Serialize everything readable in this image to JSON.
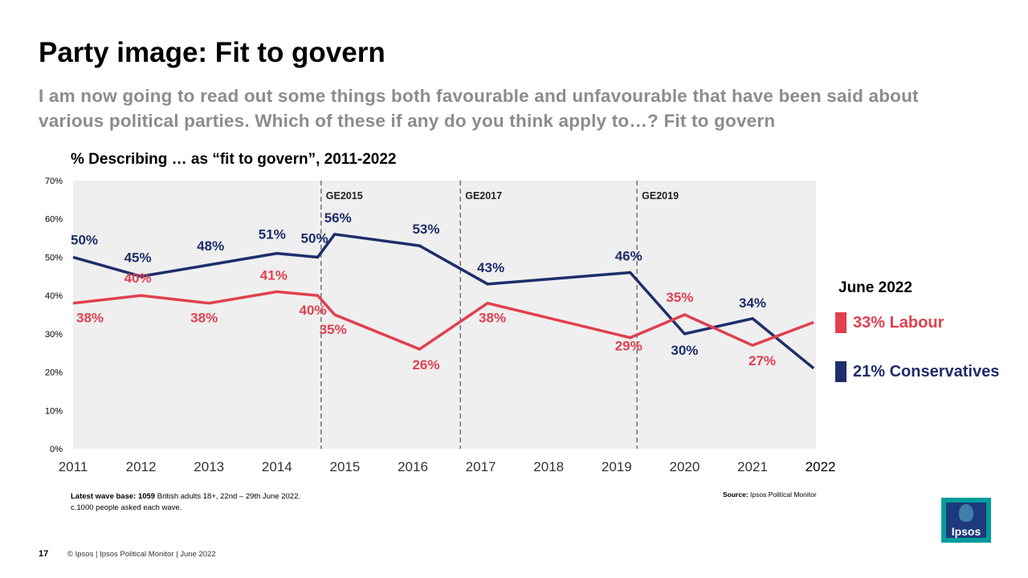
{
  "slide": {
    "title": "Party image: Fit to govern",
    "subtitle": "I am now going to read out some things both favourable and unfavourable that have been said about various political parties. Which of these if any do you think apply to…? Fit to govern",
    "chart_heading": "% Describing … as “fit to govern”, 2011-2022",
    "footnote_bold": "Latest wave base: 1059",
    "footnote_rest": " British adults 18+, 22nd – 29th June 2022.",
    "footnote_line2": "c.1000 people asked each wave.",
    "source_bold": "Source:",
    "source_rest": " Ipsos  Political Monitor",
    "page_number": "17",
    "footer_text": "© Ipsos | Ipsos  Political Monitor | June 2022",
    "logo_text": "Ipsos"
  },
  "legend": {
    "title": "June 2022",
    "labour": "33% Labour",
    "conservatives": "21% Conservatives"
  },
  "colors": {
    "labour": "#e0404f",
    "conservatives": "#1f2d6b",
    "plot_bg": "#efefef",
    "subtitle": "#8c8c8c"
  },
  "chart_data": {
    "type": "line",
    "ylim": [
      0,
      70
    ],
    "yticks": [
      0,
      10,
      20,
      30,
      40,
      50,
      60,
      70
    ],
    "ytick_labels": [
      "0%",
      "10%",
      "20%",
      "30%",
      "40%",
      "50%",
      "60%",
      "70%"
    ],
    "xlim": [
      2011,
      2021.9
    ],
    "xticks": [
      2011,
      2012,
      2013,
      2014,
      2015,
      2016,
      2017,
      2018,
      2019,
      2020,
      2021,
      2022
    ],
    "xtick_labels": [
      "2011",
      "2012",
      "2013",
      "2014",
      "2015",
      "2016",
      "2017",
      "2018",
      "2019",
      "2020",
      "2021",
      "2022"
    ],
    "vlines": [
      {
        "x": 2014.65,
        "label": "GE2015"
      },
      {
        "x": 2016.7,
        "label": "GE2017"
      },
      {
        "x": 2019.3,
        "label": "GE2019"
      }
    ],
    "series": [
      {
        "name": "Conservatives",
        "color": "#1f2d6b",
        "points": [
          [
            2011,
            50
          ],
          [
            2012,
            45
          ],
          [
            2013,
            48
          ],
          [
            2014,
            51
          ],
          [
            2014.6,
            50
          ],
          [
            2014.85,
            56
          ],
          [
            2016.1,
            53
          ],
          [
            2017.1,
            43
          ],
          [
            2019.2,
            46
          ],
          [
            2020,
            30
          ],
          [
            2021,
            34
          ],
          [
            2021.9,
            21
          ]
        ],
        "labels": [
          {
            "x": 2011,
            "y": 50,
            "text": "50%"
          },
          {
            "x": 2012,
            "y": 45,
            "text": "45%"
          },
          {
            "x": 2013,
            "y": 48,
            "text": "48%"
          },
          {
            "x": 2014,
            "y": 51,
            "text": "51%"
          },
          {
            "x": 2014.6,
            "y": 50,
            "text": "50%"
          },
          {
            "x": 2014.85,
            "y": 56,
            "text": "56%"
          },
          {
            "x": 2016.1,
            "y": 53,
            "text": "53%"
          },
          {
            "x": 2017.1,
            "y": 43,
            "text": "43%"
          },
          {
            "x": 2019.2,
            "y": 46,
            "text": "46%"
          },
          {
            "x": 2020,
            "y": 30,
            "text": "30%"
          },
          {
            "x": 2021,
            "y": 34,
            "text": "34%"
          }
        ]
      },
      {
        "name": "Labour",
        "color": "#e0404f",
        "points": [
          [
            2011,
            38
          ],
          [
            2012,
            40
          ],
          [
            2013,
            38
          ],
          [
            2014,
            41
          ],
          [
            2014.6,
            40
          ],
          [
            2014.85,
            35
          ],
          [
            2016.1,
            26
          ],
          [
            2017.1,
            38
          ],
          [
            2019.2,
            29
          ],
          [
            2020,
            35
          ],
          [
            2021,
            27
          ],
          [
            2021.9,
            33
          ]
        ],
        "labels": [
          {
            "x": 2011,
            "y": 38,
            "text": "38%"
          },
          {
            "x": 2012,
            "y": 40,
            "text": "40%"
          },
          {
            "x": 2013,
            "y": 38,
            "text": "38%"
          },
          {
            "x": 2014,
            "y": 41,
            "text": "41%"
          },
          {
            "x": 2014.6,
            "y": 40,
            "text": "40%"
          },
          {
            "x": 2014.85,
            "y": 35,
            "text": "35%"
          },
          {
            "x": 2016.1,
            "y": 26,
            "text": "26%"
          },
          {
            "x": 2017.1,
            "y": 38,
            "text": "38%"
          },
          {
            "x": 2019.2,
            "y": 29,
            "text": "29%"
          },
          {
            "x": 2020,
            "y": 35,
            "text": "35%"
          },
          {
            "x": 2021,
            "y": 27,
            "text": "27%"
          }
        ]
      }
    ]
  }
}
